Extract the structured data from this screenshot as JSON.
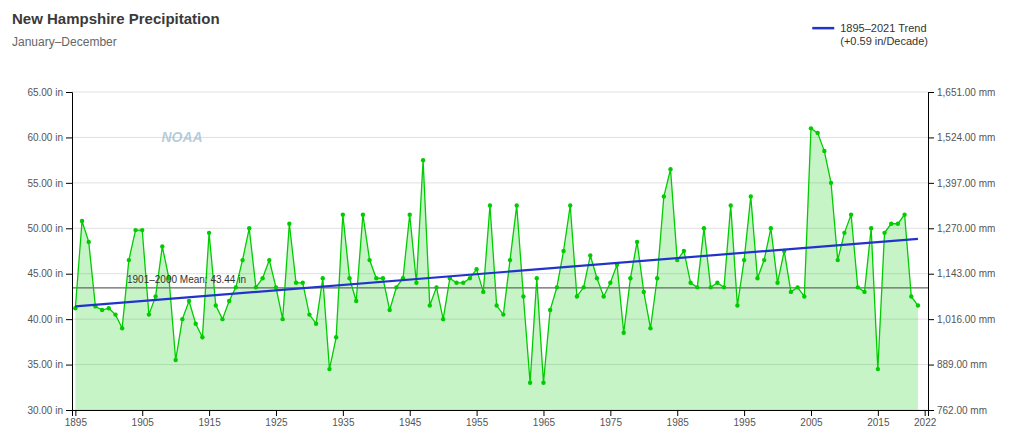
{
  "chart_data": {
    "type": "area",
    "title": "New Hampshire Precipitation",
    "subtitle": "January–December",
    "x": [
      1895,
      1896,
      1897,
      1898,
      1899,
      1900,
      1901,
      1902,
      1903,
      1904,
      1905,
      1906,
      1907,
      1908,
      1909,
      1910,
      1911,
      1912,
      1913,
      1914,
      1915,
      1916,
      1917,
      1918,
      1919,
      1920,
      1921,
      1922,
      1923,
      1924,
      1925,
      1926,
      1927,
      1928,
      1929,
      1930,
      1931,
      1932,
      1933,
      1934,
      1935,
      1936,
      1937,
      1938,
      1939,
      1940,
      1941,
      1942,
      1943,
      1944,
      1945,
      1946,
      1947,
      1948,
      1949,
      1950,
      1951,
      1952,
      1953,
      1954,
      1955,
      1956,
      1957,
      1958,
      1959,
      1960,
      1961,
      1962,
      1963,
      1964,
      1965,
      1966,
      1967,
      1968,
      1969,
      1970,
      1971,
      1972,
      1973,
      1974,
      1975,
      1976,
      1977,
      1978,
      1979,
      1980,
      1981,
      1982,
      1983,
      1984,
      1985,
      1986,
      1987,
      1988,
      1989,
      1990,
      1991,
      1992,
      1993,
      1994,
      1995,
      1996,
      1997,
      1998,
      1999,
      2000,
      2001,
      2002,
      2003,
      2004,
      2005,
      2006,
      2007,
      2008,
      2009,
      2010,
      2011,
      2012,
      2013,
      2014,
      2015,
      2016,
      2017,
      2018,
      2019,
      2020,
      2021
    ],
    "series": [
      {
        "type": "area",
        "color": "#00cc00",
        "marker": "circle",
        "values": [
          41.2,
          50.8,
          48.5,
          41.4,
          41.0,
          41.2,
          40.5,
          39.0,
          46.5,
          49.8,
          49.8,
          40.5,
          42.5,
          48.0,
          44.5,
          35.5,
          40.0,
          42.0,
          39.5,
          38.0,
          49.5,
          41.5,
          40.0,
          42.0,
          43.5,
          46.5,
          50.0,
          43.5,
          44.5,
          46.5,
          43.5,
          40.0,
          50.5,
          44.0,
          44.0,
          40.5,
          39.5,
          44.5,
          34.5,
          38.0,
          51.5,
          44.5,
          42.0,
          51.5,
          46.5,
          44.5,
          44.5,
          41.0,
          43.5,
          44.5,
          51.5,
          44.0,
          57.5,
          41.5,
          43.5,
          40.0,
          44.5,
          44.0,
          44.0,
          44.5,
          45.5,
          43.0,
          52.5,
          41.5,
          40.5,
          46.5,
          52.5,
          42.5,
          33.0,
          44.5,
          33.0,
          41.0,
          43.5,
          47.5,
          52.5,
          42.5,
          43.5,
          47.0,
          44.5,
          42.5,
          44.0,
          46.0,
          38.5,
          44.5,
          48.5,
          43.0,
          39.0,
          44.5,
          53.5,
          56.5,
          46.5,
          47.5,
          44.0,
          43.5,
          50.0,
          43.5,
          44.0,
          43.5,
          52.5,
          41.5,
          46.5,
          53.5,
          44.5,
          46.5,
          50.0,
          44.0,
          47.5,
          43.0,
          43.5,
          42.5,
          61.0,
          60.5,
          58.5,
          55.0,
          46.5,
          49.5,
          51.5,
          43.5,
          43.0,
          50.0,
          34.5,
          49.5,
          50.5,
          50.5,
          51.5,
          42.5,
          41.5
        ]
      },
      {
        "name": "1895–2021 Trend\n(+0.59 in/Decade)",
        "type": "line",
        "color": "#2233cc",
        "x": [
          1895,
          2021
        ],
        "values": [
          41.407,
          48.841
        ]
      }
    ],
    "hlines": [
      {
        "value": 43.44,
        "label": "1901–2000 Mean: 43.44 in"
      }
    ],
    "annotations": [
      {
        "text": "NOAA"
      }
    ],
    "xlim": [
      1894.5,
      2022.5
    ],
    "xticks": [
      1895,
      1905,
      1915,
      1925,
      1935,
      1945,
      1955,
      1965,
      1975,
      1985,
      1995,
      2005,
      2015,
      2022
    ],
    "ylim": [
      30.0,
      65.0
    ],
    "yticks": [
      {
        "value": 30.0,
        "label": "30.00 in"
      },
      {
        "value": 35.0,
        "label": "35.00 in"
      },
      {
        "value": 40.0,
        "label": "40.00 in"
      },
      {
        "value": 45.0,
        "label": "45.00 in"
      },
      {
        "value": 50.0,
        "label": "50.00 in"
      },
      {
        "value": 55.0,
        "label": "55.00 in"
      },
      {
        "value": 60.0,
        "label": "60.00 in"
      },
      {
        "value": 65.0,
        "label": "65.00 in"
      }
    ],
    "y2lim": [
      762.0,
      1651.0
    ],
    "y2ticks": [
      {
        "value": 762.0,
        "label": "762.00 mm"
      },
      {
        "value": 889.0,
        "label": "889.00 mm"
      },
      {
        "value": 1016.0,
        "label": "1,016.00 mm"
      },
      {
        "value": 1143.0,
        "label": "1,143.00 mm"
      },
      {
        "value": 1270.0,
        "label": "1,270.00 mm"
      },
      {
        "value": 1397.0,
        "label": "1,397.00 mm"
      },
      {
        "value": 1524.0,
        "label": "1,524.00 mm"
      },
      {
        "value": 1651.0,
        "label": "1,651.00 mm"
      }
    ],
    "grid": true,
    "legend": "top-right"
  }
}
